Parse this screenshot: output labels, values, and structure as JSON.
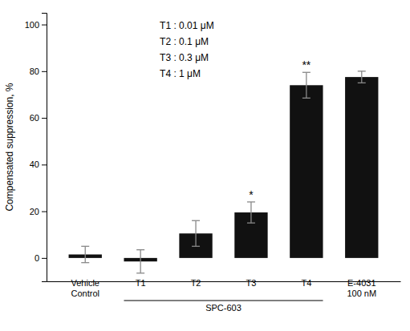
{
  "chart_data": {
    "type": "bar",
    "categories": [
      "Vehicle\nControl",
      "T1",
      "T2",
      "T3",
      "T4",
      "E-4031\n100 nM"
    ],
    "values": [
      1.5,
      -1.5,
      10.5,
      19.5,
      74.0,
      77.5
    ],
    "errors": [
      3.5,
      5.0,
      5.5,
      4.5,
      5.5,
      2.5
    ],
    "color": "#111111",
    "ylabel": "Compensated suppression, %",
    "ylim": [
      -10,
      105
    ],
    "yticks": [
      0,
      20,
      40,
      60,
      80,
      100
    ],
    "significance": [
      null,
      null,
      null,
      "*",
      "**",
      null
    ],
    "annotation_text": [
      "T1 : 0.01 μM",
      "T2 : 0.1 μM",
      "T3 : 0.3 μM",
      "T4 : 1 μM"
    ],
    "group": {
      "label": "SPC-603",
      "categories": [
        "T1",
        "T2",
        "T3",
        "T4"
      ]
    },
    "grid": false
  }
}
